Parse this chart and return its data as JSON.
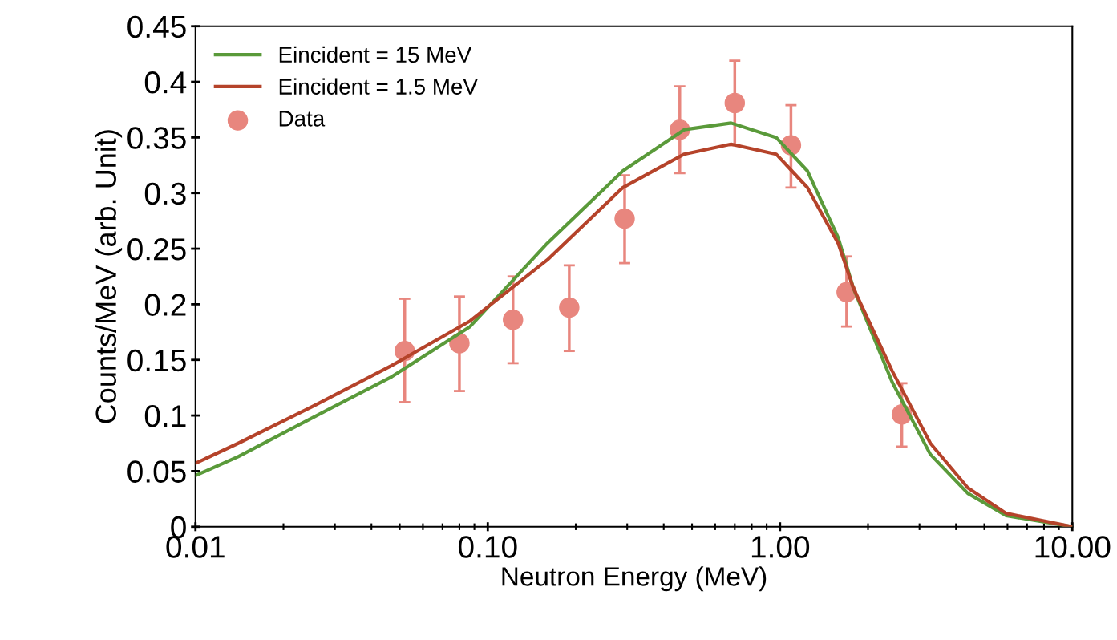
{
  "chart_data": {
    "type": "line",
    "xlabel": "Neutron Energy (MeV)",
    "ylabel": "Counts/MeV (arb. Unit)",
    "log": "x",
    "xlim": [
      0.01,
      10
    ],
    "xticks": [
      {
        "value": 0.01,
        "label": "0.01"
      },
      {
        "value": 0.1,
        "label": "0.10"
      },
      {
        "value": 1,
        "label": "1.00"
      },
      {
        "value": 10,
        "label": "10.00"
      }
    ],
    "ylim": [
      0,
      0.45
    ],
    "yticks": [
      0,
      0.05,
      0.1,
      0.15,
      0.2,
      0.25,
      0.3,
      0.35,
      0.4,
      0.45
    ],
    "grid": false,
    "legend": "top left",
    "series": [
      {
        "name": "Eincident = 15 MeV",
        "color": "#5a9a3a",
        "marker": "none",
        "x": [
          0.01,
          0.014,
          0.026,
          0.047,
          0.087,
          0.16,
          0.29,
          0.47,
          0.68,
          0.97,
          1.24,
          1.58,
          1.78,
          2.42,
          3.27,
          4.39,
          5.94,
          10
        ],
        "values": [
          0.046,
          0.063,
          0.1,
          0.135,
          0.18,
          0.255,
          0.32,
          0.357,
          0.363,
          0.35,
          0.32,
          0.26,
          0.215,
          0.13,
          0.065,
          0.03,
          0.01,
          0
        ]
      },
      {
        "name": "Eincident = 1.5 MeV",
        "color": "#b5432a",
        "marker": "none",
        "x": [
          0.01,
          0.014,
          0.026,
          0.047,
          0.087,
          0.16,
          0.29,
          0.47,
          0.68,
          0.97,
          1.24,
          1.58,
          1.78,
          2.42,
          3.27,
          4.39,
          5.94,
          10
        ],
        "values": [
          0.057,
          0.075,
          0.11,
          0.145,
          0.185,
          0.24,
          0.305,
          0.335,
          0.344,
          0.335,
          0.305,
          0.255,
          0.215,
          0.14,
          0.075,
          0.035,
          0.012,
          0
        ]
      },
      {
        "name": "Data",
        "type": "scatter",
        "color": "#e8867e",
        "marker": "circle",
        "x": [
          0.052,
          0.08,
          0.122,
          0.19,
          0.294,
          0.454,
          0.7,
          1.09,
          1.69,
          2.61
        ],
        "values": [
          0.158,
          0.165,
          0.186,
          0.197,
          0.277,
          0.357,
          0.381,
          0.343,
          0.211,
          0.101
        ],
        "errors": [
          [
            0.112,
            0.205
          ],
          [
            0.122,
            0.207
          ],
          [
            0.147,
            0.225
          ],
          [
            0.158,
            0.235
          ],
          [
            0.237,
            0.316
          ],
          [
            0.318,
            0.396
          ],
          [
            0.343,
            0.419
          ],
          [
            0.305,
            0.379
          ],
          [
            0.18,
            0.243
          ],
          [
            0.072,
            0.129
          ]
        ]
      }
    ]
  }
}
